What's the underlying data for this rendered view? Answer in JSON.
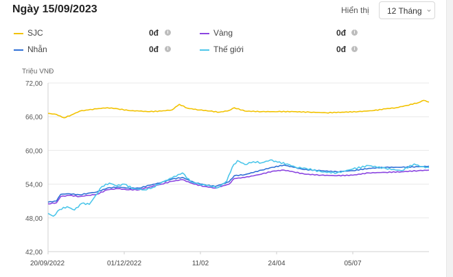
{
  "header": {
    "title": "Ngày 15/09/2023",
    "display_label": "Hiển thị",
    "period_select": {
      "value": "12 Tháng",
      "icon": "chevron-down-icon"
    }
  },
  "legend": [
    {
      "name": "SJC",
      "value": "0đ",
      "color": "#f2c200",
      "icon": "info-icon"
    },
    {
      "name": "Vàng",
      "value": "0đ",
      "color": "#8a44e0",
      "icon": "info-icon"
    },
    {
      "name": "Nhẫn",
      "value": "0đ",
      "color": "#2f6fd6",
      "icon": "info-icon"
    },
    {
      "name": "Thế giới",
      "value": "0đ",
      "color": "#4cc6ea",
      "icon": "info-icon"
    }
  ],
  "chart_data": {
    "type": "line",
    "ylabel": "Triệu VNĐ",
    "ylim": [
      42,
      72
    ],
    "yticks": [
      "72,00",
      "66,00",
      "60,00",
      "54,00",
      "48,00",
      "42,00"
    ],
    "xlim": [
      "2022-09-20",
      "2023-09-15"
    ],
    "xticks": [
      {
        "label": "20/09/2022",
        "date": "2022-09-20"
      },
      {
        "label": "01/12/2022",
        "date": "2022-12-01"
      },
      {
        "label": "11/02",
        "date": "2023-02-11"
      },
      {
        "label": "24/04",
        "date": "2023-04-24"
      },
      {
        "label": "05/07",
        "date": "2023-07-05"
      }
    ],
    "grid": {
      "horizontal": true,
      "vertical": false
    },
    "series": [
      {
        "name": "SJC",
        "color": "#f2c200",
        "points": [
          [
            "2022-09-20",
            66.6
          ],
          [
            "2022-09-28",
            66.4
          ],
          [
            "2022-10-05",
            65.8
          ],
          [
            "2022-10-12",
            66.3
          ],
          [
            "2022-10-20",
            67.0
          ],
          [
            "2022-10-28",
            67.2
          ],
          [
            "2022-11-05",
            67.4
          ],
          [
            "2022-11-15",
            67.6
          ],
          [
            "2022-11-25",
            67.4
          ],
          [
            "2022-12-05",
            67.1
          ],
          [
            "2022-12-15",
            67.0
          ],
          [
            "2022-12-25",
            66.9
          ],
          [
            "2023-01-05",
            67.0
          ],
          [
            "2023-01-15",
            67.2
          ],
          [
            "2023-01-22",
            68.2
          ],
          [
            "2023-01-30",
            67.5
          ],
          [
            "2023-02-10",
            67.2
          ],
          [
            "2023-02-20",
            67.0
          ],
          [
            "2023-03-01",
            66.8
          ],
          [
            "2023-03-10",
            67.1
          ],
          [
            "2023-03-15",
            67.6
          ],
          [
            "2023-03-25",
            67.0
          ],
          [
            "2023-04-10",
            66.9
          ],
          [
            "2023-04-25",
            66.9
          ],
          [
            "2023-05-10",
            66.9
          ],
          [
            "2023-05-25",
            66.8
          ],
          [
            "2023-06-10",
            66.7
          ],
          [
            "2023-06-25",
            66.8
          ],
          [
            "2023-07-10",
            66.9
          ],
          [
            "2023-07-25",
            67.1
          ],
          [
            "2023-08-05",
            67.4
          ],
          [
            "2023-08-15",
            67.6
          ],
          [
            "2023-08-25",
            68.0
          ],
          [
            "2023-09-05",
            68.5
          ],
          [
            "2023-09-10",
            68.9
          ],
          [
            "2023-09-15",
            68.6
          ]
        ]
      },
      {
        "name": "Vàng",
        "color": "#8a44e0",
        "points": [
          [
            "2022-09-20",
            50.5
          ],
          [
            "2022-09-28",
            50.7
          ],
          [
            "2022-10-02",
            51.8
          ],
          [
            "2022-10-10",
            52.0
          ],
          [
            "2022-10-20",
            51.8
          ],
          [
            "2022-10-28",
            52.0
          ],
          [
            "2022-11-05",
            52.2
          ],
          [
            "2022-11-15",
            53.0
          ],
          [
            "2022-11-25",
            53.2
          ],
          [
            "2022-12-05",
            53.0
          ],
          [
            "2022-12-15",
            53.0
          ],
          [
            "2022-12-25",
            53.5
          ],
          [
            "2023-01-05",
            54.0
          ],
          [
            "2023-01-15",
            54.5
          ],
          [
            "2023-01-25",
            54.8
          ],
          [
            "2023-02-05",
            54.0
          ],
          [
            "2023-02-15",
            53.6
          ],
          [
            "2023-02-25",
            53.3
          ],
          [
            "2023-03-10",
            54.0
          ],
          [
            "2023-03-15",
            55.0
          ],
          [
            "2023-03-25",
            55.2
          ],
          [
            "2023-04-10",
            55.8
          ],
          [
            "2023-04-20",
            56.3
          ],
          [
            "2023-05-01",
            56.5
          ],
          [
            "2023-05-10",
            56.2
          ],
          [
            "2023-05-20",
            55.8
          ],
          [
            "2023-06-05",
            55.6
          ],
          [
            "2023-06-20",
            55.5
          ],
          [
            "2023-07-05",
            55.6
          ],
          [
            "2023-07-20",
            56.0
          ],
          [
            "2023-08-05",
            56.1
          ],
          [
            "2023-08-20",
            56.2
          ],
          [
            "2023-09-05",
            56.4
          ],
          [
            "2023-09-15",
            56.5
          ]
        ]
      },
      {
        "name": "Nhẫn",
        "color": "#2f6fd6",
        "points": [
          [
            "2022-09-20",
            50.8
          ],
          [
            "2022-09-28",
            51.0
          ],
          [
            "2022-10-02",
            52.2
          ],
          [
            "2022-10-10",
            52.3
          ],
          [
            "2022-10-20",
            52.1
          ],
          [
            "2022-10-28",
            52.4
          ],
          [
            "2022-11-05",
            52.6
          ],
          [
            "2022-11-15",
            53.3
          ],
          [
            "2022-11-25",
            53.5
          ],
          [
            "2022-12-05",
            53.3
          ],
          [
            "2022-12-15",
            53.3
          ],
          [
            "2022-12-25",
            53.8
          ],
          [
            "2023-01-05",
            54.3
          ],
          [
            "2023-01-15",
            54.9
          ],
          [
            "2023-01-25",
            55.2
          ],
          [
            "2023-02-05",
            54.3
          ],
          [
            "2023-02-15",
            53.9
          ],
          [
            "2023-02-25",
            53.6
          ],
          [
            "2023-03-10",
            54.4
          ],
          [
            "2023-03-15",
            55.5
          ],
          [
            "2023-03-25",
            55.7
          ],
          [
            "2023-04-10",
            56.5
          ],
          [
            "2023-04-20",
            57.0
          ],
          [
            "2023-05-01",
            57.4
          ],
          [
            "2023-05-10",
            57.0
          ],
          [
            "2023-05-20",
            56.6
          ],
          [
            "2023-06-05",
            56.4
          ],
          [
            "2023-06-20",
            56.2
          ],
          [
            "2023-07-05",
            56.4
          ],
          [
            "2023-07-20",
            56.8
          ],
          [
            "2023-08-05",
            57.0
          ],
          [
            "2023-08-20",
            57.0
          ],
          [
            "2023-09-05",
            57.1
          ],
          [
            "2023-09-15",
            57.2
          ]
        ]
      },
      {
        "name": "Thế giới",
        "color": "#4cc6ea",
        "points": [
          [
            "2022-09-20",
            48.8
          ],
          [
            "2022-09-25",
            48.3
          ],
          [
            "2022-10-01",
            49.5
          ],
          [
            "2022-10-08",
            50.0
          ],
          [
            "2022-10-15",
            49.4
          ],
          [
            "2022-10-22",
            50.6
          ],
          [
            "2022-10-29",
            50.4
          ],
          [
            "2022-11-04",
            52.0
          ],
          [
            "2022-11-10",
            53.6
          ],
          [
            "2022-11-17",
            54.2
          ],
          [
            "2022-11-24",
            53.7
          ],
          [
            "2022-12-01",
            54.0
          ],
          [
            "2022-12-10",
            53.2
          ],
          [
            "2022-12-20",
            53.0
          ],
          [
            "2022-12-28",
            53.4
          ],
          [
            "2023-01-05",
            54.3
          ],
          [
            "2023-01-15",
            55.1
          ],
          [
            "2023-01-25",
            56.0
          ],
          [
            "2023-02-02",
            54.4
          ],
          [
            "2023-02-10",
            54.0
          ],
          [
            "2023-02-20",
            53.7
          ],
          [
            "2023-02-28",
            53.4
          ],
          [
            "2023-03-08",
            54.6
          ],
          [
            "2023-03-13",
            57.0
          ],
          [
            "2023-03-18",
            58.2
          ],
          [
            "2023-03-25",
            57.5
          ],
          [
            "2023-04-02",
            58.0
          ],
          [
            "2023-04-10",
            57.8
          ],
          [
            "2023-04-18",
            58.3
          ],
          [
            "2023-04-25",
            57.9
          ],
          [
            "2023-05-04",
            57.6
          ],
          [
            "2023-05-12",
            57.0
          ],
          [
            "2023-05-22",
            56.8
          ],
          [
            "2023-06-05",
            56.2
          ],
          [
            "2023-06-20",
            56.0
          ],
          [
            "2023-07-05",
            56.7
          ],
          [
            "2023-07-20",
            57.3
          ],
          [
            "2023-08-05",
            56.8
          ],
          [
            "2023-08-20",
            56.4
          ],
          [
            "2023-09-01",
            57.6
          ],
          [
            "2023-09-08",
            57.1
          ],
          [
            "2023-09-15",
            56.9
          ]
        ]
      }
    ]
  }
}
